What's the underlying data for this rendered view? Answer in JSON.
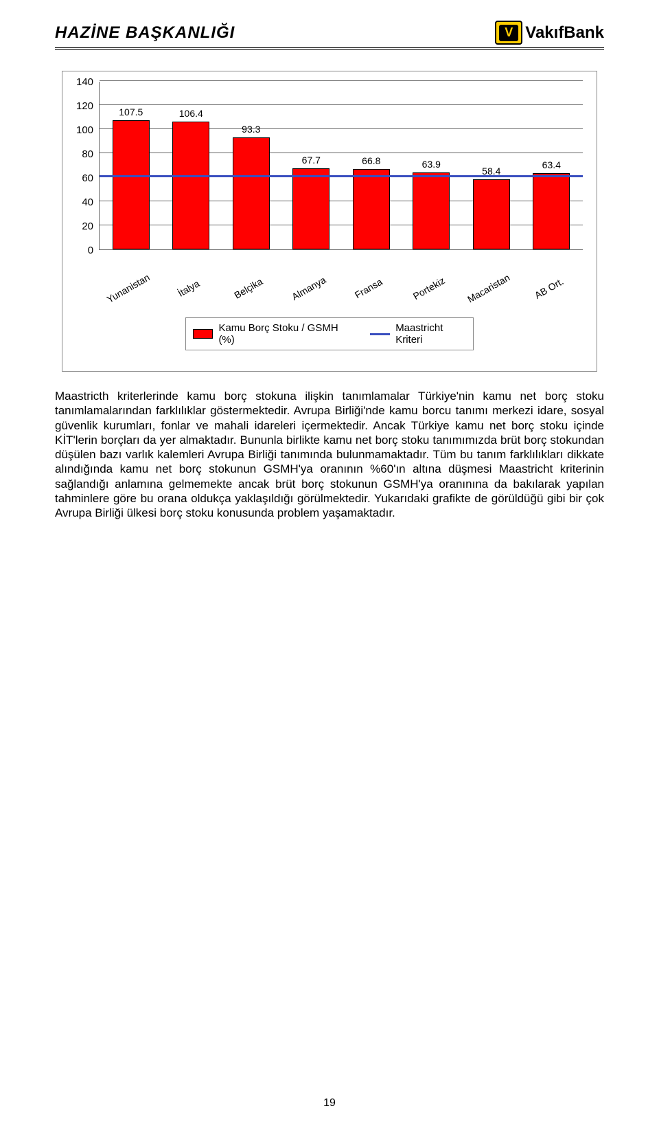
{
  "header": {
    "title": "HAZİNE  BAŞKANLIĞI",
    "logo_glyph": "V",
    "logo_text": "VakıfBank"
  },
  "chart": {
    "type": "bar",
    "y_axis": {
      "max": 140,
      "step": 20,
      "labels": [
        "140",
        "120",
        "100",
        "80",
        "60",
        "40",
        "20",
        "0"
      ]
    },
    "categories": [
      "Yunanistan",
      "İtalya",
      "Belçika",
      "Almanya",
      "Fransa",
      "Portekiz",
      "Macaristan",
      "AB Ort."
    ],
    "values": [
      107.5,
      106.4,
      93.3,
      67.7,
      66.8,
      63.9,
      58.4,
      63.4
    ],
    "value_labels": [
      "107.5",
      "106.4",
      "93.3",
      "67.7",
      "66.8",
      "63.9",
      "58.4",
      "63.4"
    ],
    "bar_color": "#ff0000",
    "maastricht_value": 60,
    "line_color": "#3a4fbf",
    "grid_color": "#666666",
    "legend": {
      "series_label": "Kamu Borç Stoku / GSMH (%)",
      "criterion_label": "Maastricht Kriteri"
    }
  },
  "paragraph": "Maastricth kriterlerinde kamu borç stokuna ilişkin tanımlamalar Türkiye'nin kamu net borç stoku tanımlamalarından farklılıklar göstermektedir. Avrupa Birliği'nde kamu borcu tanımı merkezi idare, sosyal güvenlik kurumları, fonlar ve mahali idareleri içermektedir. Ancak Türkiye kamu net borç stoku içinde KİT'lerin borçları da yer almaktadır. Bununla birlikte kamu net borç stoku tanımımızda brüt borç stokundan düşülen bazı varlık kalemleri Avrupa Birliği tanımında bulunmamaktadır. Tüm bu tanım farklılıkları dikkate alındığında kamu net borç stokunun GSMH'ya oranının %60'ın altına düşmesi Maastricht kriterinin sağlandığı anlamına gelmemekte ancak brüt borç stokunun GSMH'ya oranınına da bakılarak yapılan tahminlere göre bu orana oldukça yaklaşıldığı görülmektedir. Yukarıdaki grafikte de görüldüğü gibi bir çok Avrupa Birliği ülkesi borç stoku konusunda problem yaşamaktadır.",
  "page_number": "19"
}
